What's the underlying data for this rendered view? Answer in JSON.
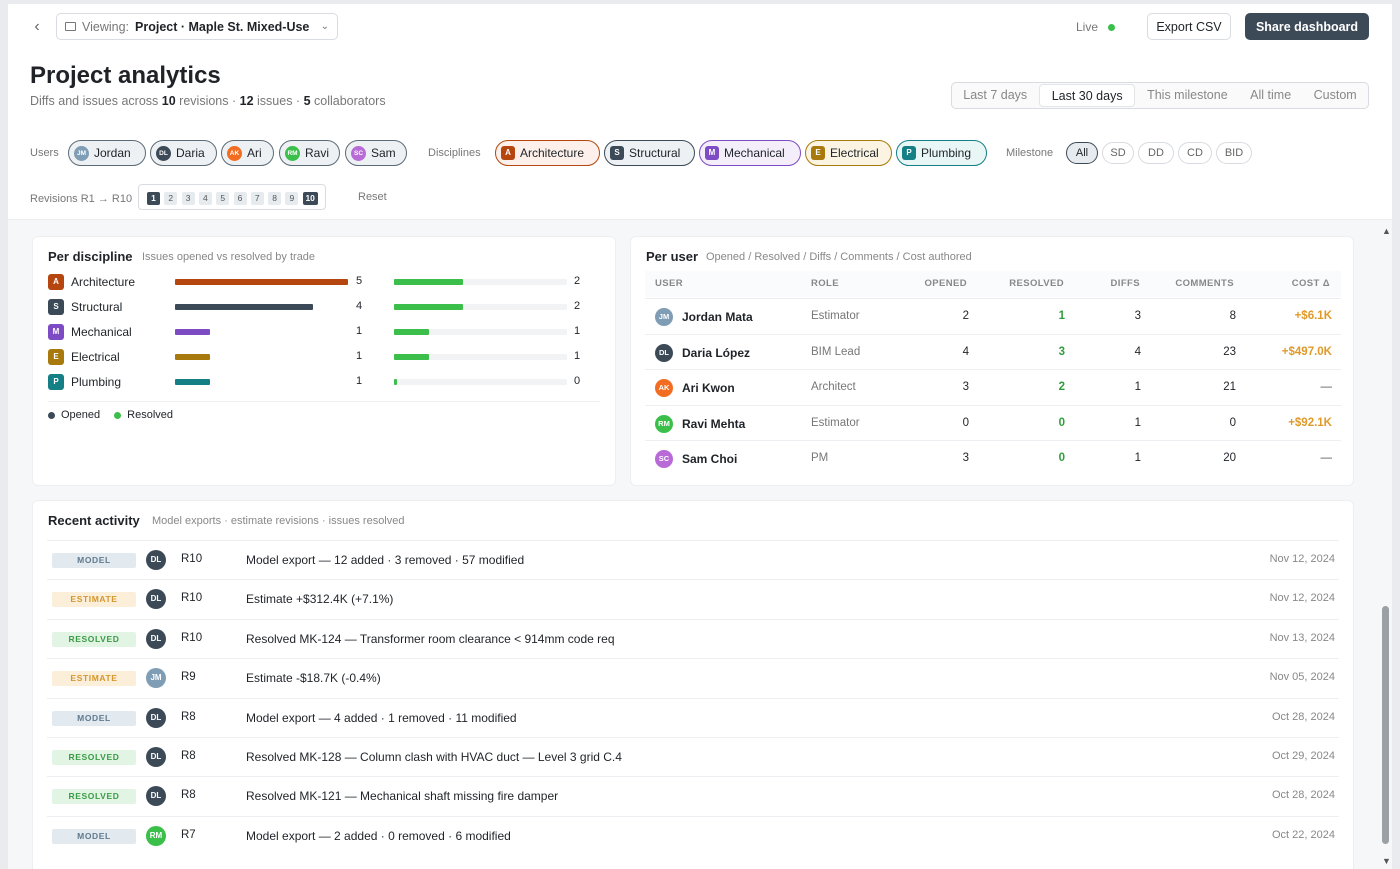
{
  "topbar": {
    "viewing_label": "Viewing:",
    "project": "Project · Maple St. Mixed-Use",
    "live_label": "Live",
    "export_label": "Export CSV",
    "share_label": "Share dashboard"
  },
  "header": {
    "title": "Project analytics",
    "subtitle": {
      "pre": "Diffs and issues across",
      "revisions": "10",
      "mid1": "revisions ·",
      "issues": "12",
      "mid2": "issues ·",
      "collaborators": "5",
      "post": "collaborators"
    },
    "ranges": [
      "Last 7 days",
      "Last 30 days",
      "This milestone",
      "All time",
      "Custom"
    ],
    "active_range": "Last 30 days"
  },
  "filters": {
    "users_label": "Users",
    "users": [
      {
        "initials": "JM",
        "name": "Jordan",
        "color": "#7f9db4"
      },
      {
        "initials": "DL",
        "name": "Daria",
        "color": "#3c4a57"
      },
      {
        "initials": "AK",
        "name": "Ari",
        "color": "#f26d21"
      },
      {
        "initials": "RM",
        "name": "Ravi",
        "color": "#3bbf4a"
      },
      {
        "initials": "SC",
        "name": "Sam",
        "color": "#b86ad6"
      }
    ],
    "disciplines_label": "Disciplines",
    "disciplines": [
      {
        "letter": "A",
        "name": "Architecture",
        "color": "#b5460f"
      },
      {
        "letter": "S",
        "name": "Structural",
        "color": "#3c4a57"
      },
      {
        "letter": "M",
        "name": "Mechanical",
        "color": "#7d4cc4"
      },
      {
        "letter": "E",
        "name": "Electrical",
        "color": "#a87a0d"
      },
      {
        "letter": "P",
        "name": "Plumbing",
        "color": "#157f86"
      }
    ],
    "milestone_label": "Milestone",
    "milestones": [
      "All",
      "SD",
      "DD",
      "CD",
      "BID"
    ],
    "revisions_label": "Revisions R1 → R10",
    "revisions": [
      "1",
      "2",
      "3",
      "4",
      "5",
      "6",
      "7",
      "8",
      "9",
      "10"
    ],
    "reset_label": "Reset"
  },
  "per_discipline": {
    "title": "Per discipline",
    "subtitle": "Issues opened vs resolved by trade",
    "rows": [
      {
        "letter": "A",
        "name": "Architecture",
        "color": "#b5460f",
        "opened": 5,
        "resolved": 2
      },
      {
        "letter": "S",
        "name": "Structural",
        "color": "#3c4a57",
        "opened": 4,
        "resolved": 2
      },
      {
        "letter": "M",
        "name": "Mechanical",
        "color": "#7d4cc4",
        "opened": 1,
        "resolved": 1
      },
      {
        "letter": "E",
        "name": "Electrical",
        "color": "#a87a0d",
        "opened": 1,
        "resolved": 1
      },
      {
        "letter": "P",
        "name": "Plumbing",
        "color": "#157f86",
        "opened": 1,
        "resolved": 0
      }
    ],
    "legend_opened": "Opened",
    "legend_resolved": "Resolved"
  },
  "per_user": {
    "title": "Per user",
    "subtitle": "Opened / Resolved / Diffs / Comments / Cost authored",
    "columns": [
      "USER",
      "ROLE",
      "OPENED",
      "RESOLVED",
      "DIFFS",
      "COMMENTS",
      "COST Δ"
    ],
    "rows": [
      {
        "initials": "JM",
        "name": "Jordan Mata",
        "role": "Estimator",
        "opened": "2",
        "resolved": "1",
        "diffs": "3",
        "comments": "8",
        "cost": "+$6.1K",
        "color": "#7f9db4"
      },
      {
        "initials": "DL",
        "name": "Daria López",
        "role": "BIM Lead",
        "opened": "4",
        "resolved": "3",
        "diffs": "4",
        "comments": "23",
        "cost": "+$497.0K",
        "color": "#3c4a57"
      },
      {
        "initials": "AK",
        "name": "Ari Kwon",
        "role": "Architect",
        "opened": "3",
        "resolved": "2",
        "diffs": "1",
        "comments": "21",
        "cost": "—",
        "color": "#f26d21"
      },
      {
        "initials": "RM",
        "name": "Ravi Mehta",
        "role": "Estimator",
        "opened": "0",
        "resolved": "0",
        "diffs": "1",
        "comments": "0",
        "cost": "+$92.1K",
        "color": "#3bbf4a"
      },
      {
        "initials": "SC",
        "name": "Sam Choi",
        "role": "PM",
        "opened": "3",
        "resolved": "0",
        "diffs": "1",
        "comments": "20",
        "cost": "—",
        "color": "#b86ad6"
      }
    ]
  },
  "activity": {
    "title": "Recent activity",
    "subtitle": "Model exports · estimate revisions · issues resolved",
    "rows": [
      {
        "tag": "MODEL",
        "kind": "model",
        "initials": "DL",
        "color": "#3c4a57",
        "rev": "R10",
        "text": "Model export — 12 added · 3 removed · 57 modified",
        "date": "Nov 12, 2024"
      },
      {
        "tag": "ESTIMATE",
        "kind": "estimate",
        "initials": "DL",
        "color": "#3c4a57",
        "rev": "R10",
        "text": "Estimate +$312.4K (+7.1%)",
        "date": "Nov 12, 2024"
      },
      {
        "tag": "RESOLVED",
        "kind": "resolved",
        "initials": "DL",
        "color": "#3c4a57",
        "rev": "R10",
        "text": "Resolved MK-124 — Transformer room clearance < 914mm code req",
        "date": "Nov 13, 2024"
      },
      {
        "tag": "ESTIMATE",
        "kind": "estimate",
        "initials": "JM",
        "color": "#7f9db4",
        "rev": "R9",
        "text": "Estimate -$18.7K (-0.4%)",
        "date": "Nov 05, 2024"
      },
      {
        "tag": "MODEL",
        "kind": "model",
        "initials": "DL",
        "color": "#3c4a57",
        "rev": "R8",
        "text": "Model export — 4 added · 1 removed · 11 modified",
        "date": "Oct 28, 2024"
      },
      {
        "tag": "RESOLVED",
        "kind": "resolved",
        "initials": "DL",
        "color": "#3c4a57",
        "rev": "R8",
        "text": "Resolved MK-128 — Column clash with HVAC duct — Level 3 grid C.4",
        "date": "Oct 29, 2024"
      },
      {
        "tag": "RESOLVED",
        "kind": "resolved",
        "initials": "DL",
        "color": "#3c4a57",
        "rev": "R8",
        "text": "Resolved MK-121 — Mechanical shaft missing fire damper",
        "date": "Oct 28, 2024"
      },
      {
        "tag": "MODEL",
        "kind": "model",
        "initials": "RM",
        "color": "#3bbf4a",
        "rev": "R7",
        "text": "Model export — 2 added · 0 removed · 6 modified",
        "date": "Oct 22, 2024"
      }
    ]
  }
}
